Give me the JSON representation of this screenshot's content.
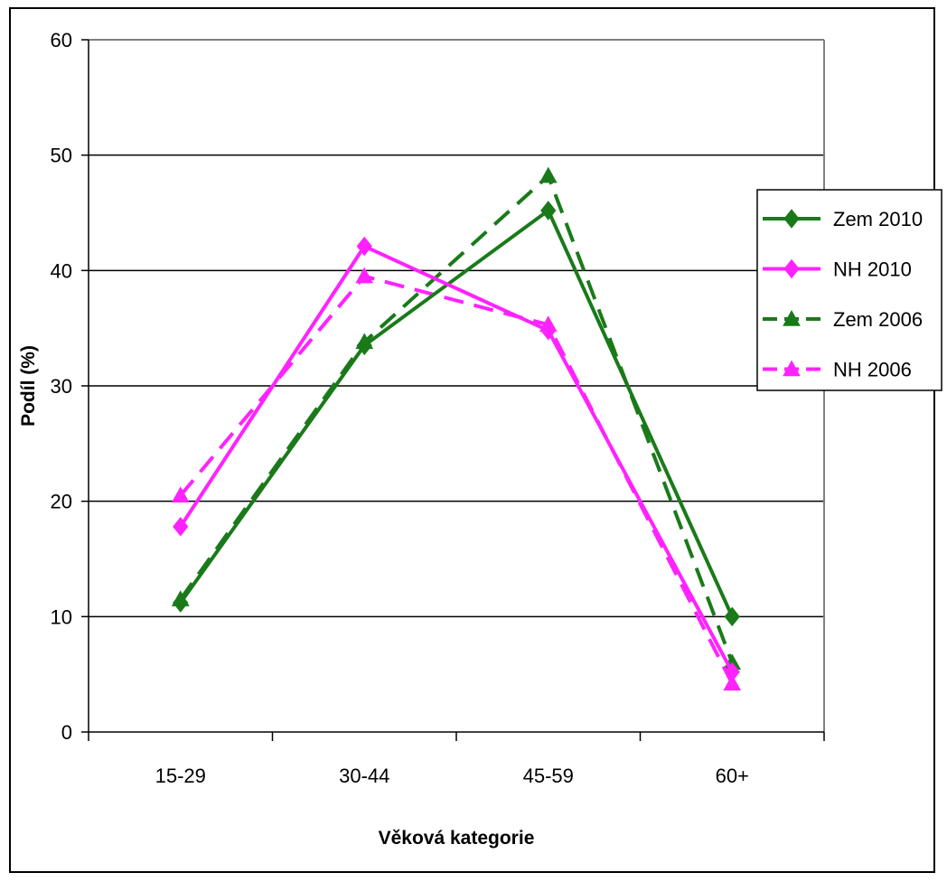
{
  "chart_data": {
    "type": "line",
    "categories": [
      "15-29",
      "30-44",
      "45-59",
      "60+"
    ],
    "xlabel": "Věková kategorie",
    "ylabel": "Podíl (%)",
    "ylim": [
      0,
      60
    ],
    "yticks": [
      "0",
      "10",
      "20",
      "30",
      "40",
      "50",
      "60"
    ],
    "grid": true,
    "legend_position": "right",
    "series": [
      {
        "name": "Zem 2010",
        "values": [
          11.2,
          33.5,
          45.2,
          10.0
        ],
        "color": "#1a7a1a",
        "dash": "solid",
        "marker": "diamond"
      },
      {
        "name": "NH 2010",
        "values": [
          17.8,
          42.1,
          34.8,
          5.2
        ],
        "color": "#ff22ff",
        "dash": "solid",
        "marker": "diamond"
      },
      {
        "name": "Zem 2006",
        "values": [
          11.5,
          33.8,
          48.2,
          6.0
        ],
        "color": "#1a7a1a",
        "dash": "dashed",
        "marker": "triangle"
      },
      {
        "name": "NH 2006",
        "values": [
          20.5,
          39.5,
          35.3,
          4.2
        ],
        "color": "#ff22ff",
        "dash": "dashed",
        "marker": "triangle"
      }
    ]
  }
}
